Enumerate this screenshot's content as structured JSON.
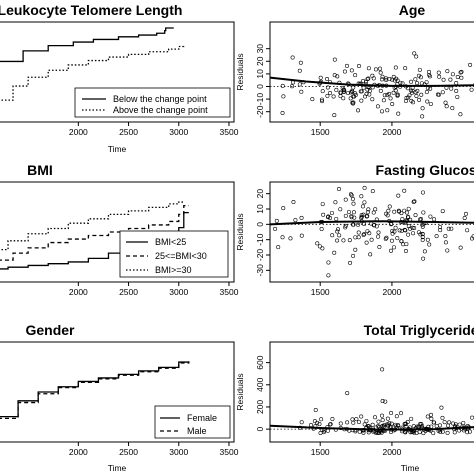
{
  "chart_data": [
    {
      "id": "p1",
      "type": "line",
      "title": "Leukocyte Telomere Length",
      "xlabel": "Time",
      "ylabel": "",
      "xlim": [
        1200,
        3550
      ],
      "ylim": [
        0,
        1
      ],
      "x_ticks": [
        2000,
        2500,
        3000,
        3500
      ],
      "legend": "bottom-right",
      "series": [
        {
          "name": "Below the change point",
          "style": "solid",
          "x": [
            1200,
            1450,
            1700,
            1950,
            2150,
            2400,
            2600,
            2780,
            2860,
            2870,
            2950
          ],
          "y": [
            0.62,
            0.74,
            0.8,
            0.84,
            0.87,
            0.9,
            0.92,
            0.94,
            0.97,
            1.0,
            1.0
          ]
        },
        {
          "name": "Above the change point",
          "style": "dotted",
          "x": [
            1200,
            1350,
            1500,
            1700,
            1900,
            2100,
            2300,
            2500,
            2700,
            2900,
            3000,
            3050
          ],
          "y": [
            0.18,
            0.34,
            0.44,
            0.52,
            0.58,
            0.63,
            0.67,
            0.7,
            0.73,
            0.76,
            0.79,
            0.8
          ]
        }
      ]
    },
    {
      "id": "p2",
      "type": "scatter",
      "title": "Age",
      "xlabel": "",
      "ylabel": "Residuals",
      "xlim": [
        1150,
        2600
      ],
      "ylim": [
        -25,
        48
      ],
      "x_ticks": [
        1500,
        2000
      ],
      "y_ticks": [
        -20,
        -10,
        0,
        10,
        20,
        30
      ],
      "smooth": {
        "x": [
          1150,
          1400,
          1700,
          2000,
          2300,
          2600
        ],
        "y": [
          7,
          4,
          1.5,
          0.5,
          0.5,
          1
        ]
      },
      "points": {
        "n": 190,
        "seed": 11,
        "xmin": 1150,
        "xmax": 2600,
        "center": 2000,
        "xspread": 300,
        "sd": 11
      }
    },
    {
      "id": "p3",
      "type": "line",
      "title": "BMI",
      "xlabel": "",
      "ylabel": "",
      "xlim": [
        1200,
        3550
      ],
      "ylim": [
        0,
        1
      ],
      "x_ticks": [
        2000,
        2500,
        3000,
        3500
      ],
      "legend": "bottom-right",
      "series": [
        {
          "name": "BMI<25",
          "style": "solid",
          "x": [
            1200,
            1300,
            1500,
            1700,
            1900,
            2100,
            2300,
            2500,
            2700,
            2900,
            3000,
            3050,
            3100
          ],
          "y": [
            0.08,
            0.1,
            0.12,
            0.14,
            0.16,
            0.2,
            0.26,
            0.3,
            0.34,
            0.38,
            0.55,
            0.72,
            0.72
          ]
        },
        {
          "name": "25<=BMI<30",
          "style": "dashed",
          "x": [
            1200,
            1350,
            1500,
            1700,
            1900,
            2100,
            2300,
            2500,
            2700,
            2900,
            3000,
            3050,
            3100
          ],
          "y": [
            0.18,
            0.26,
            0.32,
            0.38,
            0.42,
            0.46,
            0.5,
            0.54,
            0.58,
            0.62,
            0.7,
            0.8,
            0.8
          ]
        },
        {
          "name": "BMI>=30",
          "style": "dotted",
          "x": [
            1200,
            1300,
            1500,
            1700,
            1900,
            2100,
            2300,
            2500,
            2700,
            2900,
            3000,
            3050
          ],
          "y": [
            0.3,
            0.4,
            0.48,
            0.54,
            0.6,
            0.65,
            0.7,
            0.74,
            0.78,
            0.82,
            0.84,
            0.85
          ]
        }
      ]
    },
    {
      "id": "p4",
      "type": "scatter",
      "title": "Fasting Glucose",
      "xlabel": "",
      "ylabel": "Residuals",
      "xlim": [
        1150,
        2600
      ],
      "ylim": [
        -35,
        25
      ],
      "x_ticks": [
        1500,
        2000
      ],
      "y_ticks": [
        -30,
        -20,
        -10,
        0,
        10,
        20
      ],
      "smooth": {
        "x": [
          1150,
          1500,
          1900,
          2300,
          2600
        ],
        "y": [
          0,
          1.5,
          2,
          1.5,
          1
        ]
      },
      "points": {
        "n": 180,
        "seed": 23,
        "xmin": 1150,
        "xmax": 2600,
        "center": 1950,
        "xspread": 300,
        "sd": 10
      }
    },
    {
      "id": "p5",
      "type": "line",
      "title": "Gender",
      "xlabel": "Time",
      "ylabel": "",
      "xlim": [
        1200,
        3550
      ],
      "ylim": [
        0,
        1
      ],
      "x_ticks": [
        2000,
        2500,
        3000,
        3500
      ],
      "legend": "bottom-right",
      "series": [
        {
          "name": "Female",
          "style": "solid",
          "x": [
            1200,
            1400,
            1600,
            1800,
            2000,
            2200,
            2400,
            2600,
            2800,
            3000,
            3100
          ],
          "y": [
            0.22,
            0.4,
            0.5,
            0.56,
            0.62,
            0.66,
            0.7,
            0.74,
            0.78,
            0.84,
            0.85
          ]
        },
        {
          "name": "Male",
          "style": "dashed",
          "x": [
            1200,
            1400,
            1600,
            1800,
            2000,
            2200,
            2400,
            2600,
            2800,
            3000,
            3100
          ],
          "y": [
            0.2,
            0.38,
            0.48,
            0.55,
            0.61,
            0.65,
            0.69,
            0.73,
            0.77,
            0.83,
            0.84
          ]
        }
      ]
    },
    {
      "id": "p6",
      "type": "scatter",
      "title": "Total Triglycerides",
      "xlabel": "Time",
      "ylabel": "Residuals",
      "xlim": [
        1150,
        2600
      ],
      "ylim": [
        -80,
        750
      ],
      "x_ticks": [
        1500,
        2000
      ],
      "y_ticks": [
        0,
        200,
        400,
        600
      ],
      "smooth": {
        "x": [
          1150,
          1500,
          1900,
          2300,
          2600
        ],
        "y": [
          30,
          10,
          -5,
          0,
          20
        ]
      },
      "points": {
        "n": 190,
        "seed": 37,
        "xmin": 1150,
        "xmax": 2600,
        "center": 2000,
        "xspread": 300,
        "sd": 60,
        "skew": true
      }
    }
  ]
}
